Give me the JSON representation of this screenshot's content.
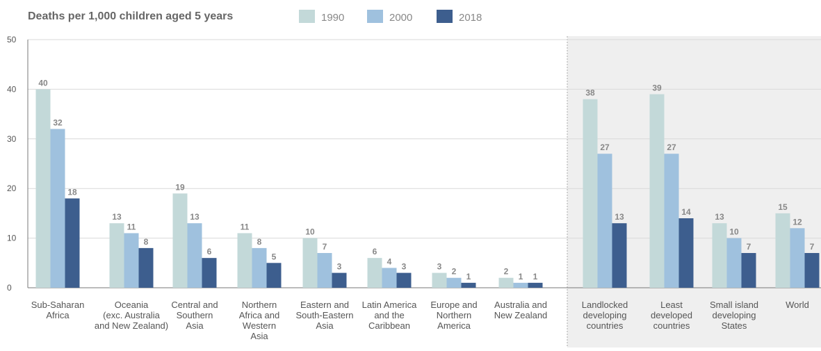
{
  "chart_data": {
    "type": "bar",
    "title": "Deaths per 1,000 children aged 5 years",
    "ylim": [
      0,
      50
    ],
    "yticks": [
      0,
      10,
      20,
      30,
      40,
      50
    ],
    "grid": true,
    "legend_position": "top",
    "series": [
      {
        "name": "1990",
        "color": "#c3d9d9",
        "values": [
          40,
          13,
          19,
          11,
          10,
          6,
          3,
          2,
          38,
          39,
          13,
          15
        ]
      },
      {
        "name": "2000",
        "color": "#9fc1de",
        "values": [
          32,
          11,
          13,
          8,
          7,
          4,
          2,
          1,
          27,
          27,
          10,
          12
        ]
      },
      {
        "name": "2018",
        "color": "#3d5e8e",
        "values": [
          18,
          8,
          6,
          5,
          3,
          3,
          1,
          1,
          13,
          14,
          7,
          7
        ]
      }
    ],
    "categories": [
      [
        "Sub-Saharan",
        "Africa"
      ],
      [
        "Oceania",
        "(exc. Australia",
        "and New Zealand)"
      ],
      [
        "Central and",
        "Southern",
        "Asia"
      ],
      [
        "Northern",
        "Africa and",
        "Western",
        "Asia"
      ],
      [
        "Eastern and",
        "South-Eastern",
        "Asia"
      ],
      [
        "Latin America",
        "and the",
        "Caribbean"
      ],
      [
        "Europe and",
        "Northern",
        "America"
      ],
      [
        "Australia and",
        "New Zealand"
      ],
      [
        "Landlocked",
        "developing",
        "countries"
      ],
      [
        "Least",
        "developed",
        "countries"
      ],
      [
        "Small island",
        "developing",
        "States"
      ],
      [
        "World"
      ]
    ],
    "highlight_groups_from_index": 8
  }
}
